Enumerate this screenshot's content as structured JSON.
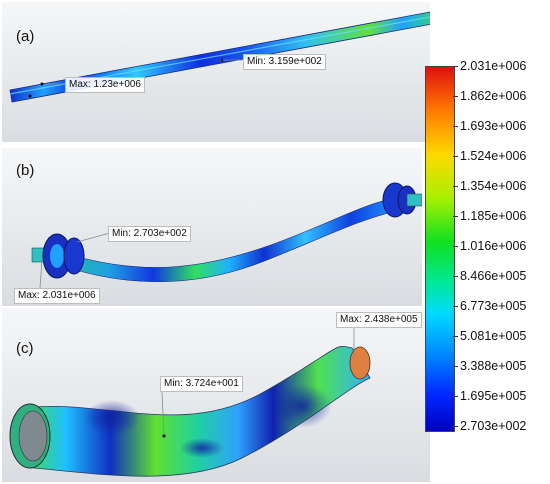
{
  "panels": {
    "a": {
      "label": "(a)",
      "max_label": "Max: 1.23e+006",
      "min_label": "Min: 3.159e+002"
    },
    "b": {
      "label": "(b)",
      "max_label": "Max: 2.031e+006",
      "min_label": "Min: 2.703e+002"
    },
    "c": {
      "label": "(c)",
      "max_label": "Max: 2.438e+005",
      "min_label": "Min: 3.724e+001"
    }
  },
  "legend": {
    "labels": [
      "2.031e+006",
      "1.862e+006",
      "1.693e+006",
      "1.524e+006",
      "1.354e+006",
      "1.185e+006",
      "1.016e+006",
      "8.466e+005",
      "6.773e+005",
      "5.081e+005",
      "3.388e+005",
      "1.695e+005",
      "2.703e+002"
    ],
    "colors": {
      "max": "#e01010",
      "mid": "#10e020",
      "min": "#0000c0"
    }
  }
}
